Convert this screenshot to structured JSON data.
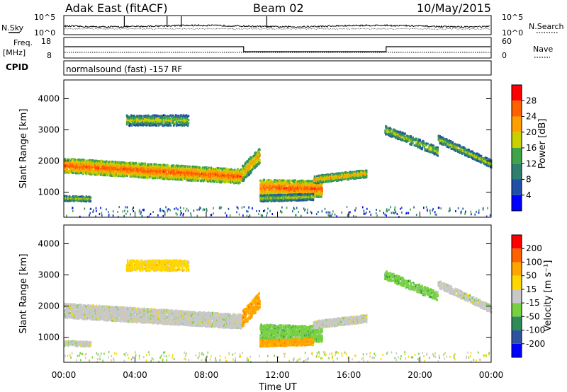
{
  "header": {
    "station": "Adak East (fitACF)",
    "beam": "Beam 02",
    "date": "10/May/2015"
  },
  "summary": {
    "nsky_label": "N.Sky",
    "nsearch_label": "N.Search",
    "freq_label": "Freq.",
    "freq_unit": "[MHz]",
    "nave_label": "Nave",
    "cpid_label": "CPID",
    "cpid_text": "normalsound (fast) -157 RF",
    "noise_ticks_left": [
      "10^5",
      "10^0"
    ],
    "noise_ticks_right": [
      "10^5",
      "10^0"
    ],
    "freq_ticks": [
      "18",
      "8"
    ],
    "nave_ticks": [
      "60",
      "0"
    ]
  },
  "colors": {
    "power_scale": [
      "#0000ff",
      "#1f4fa8",
      "#2f7f6f",
      "#3fa34a",
      "#c8d000",
      "#ffa000",
      "#ff6000",
      "#ff0000"
    ],
    "velocity_scale": [
      "#0000ff",
      "#2f52a0",
      "#2e8b57",
      "#76d140",
      "#c8c8c8",
      "#ffd700",
      "#ffa500",
      "#ff6000",
      "#ff0000"
    ]
  },
  "chart_data": [
    {
      "type": "heatmap",
      "name": "power",
      "ylabel": "Slant Range [km]",
      "yticks": [
        1000,
        2000,
        3000,
        4000
      ],
      "ylim": [
        200,
        4600
      ],
      "colorbar_label": "Power [dB]",
      "colorbar_ticks": [
        "4",
        "8",
        "12",
        "16",
        "20",
        "24",
        "28"
      ],
      "colorbar_range": [
        0,
        32
      ]
    },
    {
      "type": "heatmap",
      "name": "velocity",
      "ylabel": "Slant Range [km]",
      "yticks": [
        1000,
        2000,
        3000,
        4000
      ],
      "ylim": [
        200,
        4600
      ],
      "colorbar_label": "Velocity [m s⁻¹]",
      "colorbar_ticks": [
        "-200",
        "-100",
        "-50",
        "-15",
        "15",
        "50",
        "100",
        "200"
      ],
      "xlabel": "Time UT",
      "xticks": [
        "00:00",
        "04:00",
        "08:00",
        "12:00",
        "16:00",
        "20:00",
        "00:00"
      ],
      "xlim": [
        0,
        24
      ]
    }
  ]
}
